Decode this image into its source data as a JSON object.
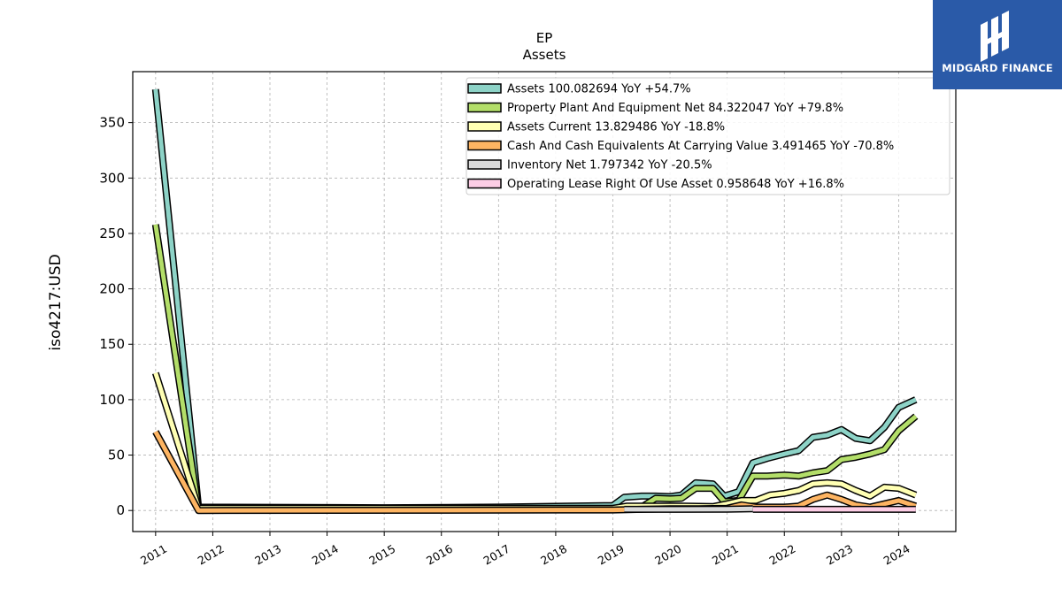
{
  "chart_data": {
    "type": "line",
    "title": "EP",
    "subtitle": "Assets",
    "xlabel": "",
    "ylabel": "iso4217:USD",
    "xlim": [
      2010.6,
      2025.0
    ],
    "ylim": [
      -19,
      396
    ],
    "yticks": [
      0,
      50,
      100,
      150,
      200,
      250,
      300,
      350
    ],
    "xticks": [
      2011,
      2012,
      2013,
      2014,
      2015,
      2016,
      2017,
      2018,
      2019,
      2020,
      2021,
      2022,
      2023,
      2024
    ],
    "xtick_labels": [
      "2011",
      "2012",
      "2013",
      "2014",
      "2015",
      "2016",
      "2017",
      "2018",
      "2019",
      "2020",
      "2021",
      "2022",
      "2023",
      "2024"
    ],
    "grid": true,
    "legend_position": "top-right",
    "series": [
      {
        "name": "Assets",
        "legend": "Assets  100.082694 YoY +54.7%",
        "color": "#8dd3c7",
        "points": [
          [
            2011.0,
            380
          ],
          [
            2011.75,
            3
          ],
          [
            2015.0,
            2.5
          ],
          [
            2017.0,
            3
          ],
          [
            2019.0,
            4.5
          ],
          [
            2019.2,
            12
          ],
          [
            2019.5,
            13
          ],
          [
            2019.75,
            13
          ],
          [
            2020.0,
            12.5
          ],
          [
            2020.2,
            14
          ],
          [
            2020.45,
            25
          ],
          [
            2020.75,
            24
          ],
          [
            2020.95,
            13
          ],
          [
            2021.2,
            17
          ],
          [
            2021.45,
            43
          ],
          [
            2021.7,
            47
          ],
          [
            2022.0,
            51
          ],
          [
            2022.25,
            54
          ],
          [
            2022.5,
            66
          ],
          [
            2022.75,
            68
          ],
          [
            2023.0,
            73
          ],
          [
            2023.25,
            65
          ],
          [
            2023.5,
            63
          ],
          [
            2023.75,
            75
          ],
          [
            2024.0,
            93
          ],
          [
            2024.3,
            100
          ]
        ]
      },
      {
        "name": "Property Plant And Equipment Net",
        "legend": "Property Plant And Equipment Net  84.322047 YoY +79.8%",
        "color": "#b3de69",
        "points": [
          [
            2011.0,
            258
          ],
          [
            2011.75,
            1
          ],
          [
            2019.0,
            1
          ],
          [
            2019.25,
            1
          ],
          [
            2019.5,
            3
          ],
          [
            2019.75,
            11
          ],
          [
            2020.0,
            10.5
          ],
          [
            2020.2,
            11
          ],
          [
            2020.45,
            20
          ],
          [
            2020.75,
            20
          ],
          [
            2020.95,
            8
          ],
          [
            2021.2,
            9
          ],
          [
            2021.45,
            31
          ],
          [
            2021.7,
            31
          ],
          [
            2022.0,
            32
          ],
          [
            2022.25,
            31
          ],
          [
            2022.5,
            34
          ],
          [
            2022.75,
            36
          ],
          [
            2023.0,
            46
          ],
          [
            2023.25,
            48
          ],
          [
            2023.5,
            51
          ],
          [
            2023.75,
            55
          ],
          [
            2024.0,
            72
          ],
          [
            2024.3,
            85
          ]
        ]
      },
      {
        "name": "Assets Current",
        "legend": "Assets Current  13.829486 YoY -18.8%",
        "color": "#ffffb3",
        "points": [
          [
            2011.0,
            124
          ],
          [
            2011.75,
            2
          ],
          [
            2019.0,
            2
          ],
          [
            2019.25,
            4
          ],
          [
            2019.75,
            4
          ],
          [
            2020.25,
            4
          ],
          [
            2020.75,
            3.5
          ],
          [
            2021.0,
            6
          ],
          [
            2021.25,
            9
          ],
          [
            2021.5,
            9
          ],
          [
            2021.75,
            14
          ],
          [
            2022.0,
            15.5
          ],
          [
            2022.25,
            18
          ],
          [
            2022.5,
            24
          ],
          [
            2022.75,
            25
          ],
          [
            2023.0,
            24
          ],
          [
            2023.25,
            18
          ],
          [
            2023.5,
            13
          ],
          [
            2023.75,
            21
          ],
          [
            2024.0,
            20
          ],
          [
            2024.3,
            14
          ]
        ]
      },
      {
        "name": "Cash And Cash Equivalents At Carrying Value",
        "legend": "Cash And Cash Equivalents At Carrying Value  3.491465 YoY -70.8%",
        "color": "#fdb462",
        "points": [
          [
            2011.0,
            71
          ],
          [
            2011.75,
            0
          ],
          [
            2019.0,
            0.5
          ],
          [
            2019.5,
            1
          ],
          [
            2020.0,
            1.5
          ],
          [
            2020.5,
            1.5
          ],
          [
            2021.0,
            2
          ],
          [
            2021.25,
            5
          ],
          [
            2021.5,
            3
          ],
          [
            2022.0,
            3
          ],
          [
            2022.25,
            4
          ],
          [
            2022.5,
            10
          ],
          [
            2022.75,
            14
          ],
          [
            2023.0,
            10
          ],
          [
            2023.25,
            5
          ],
          [
            2023.5,
            3
          ],
          [
            2023.75,
            6
          ],
          [
            2024.0,
            9
          ],
          [
            2024.3,
            4
          ]
        ]
      },
      {
        "name": "Inventory Net",
        "legend": "Inventory Net  1.797342 YoY -20.5%",
        "color": "#d9d9d9",
        "points": [
          [
            2019.2,
            1
          ],
          [
            2020.0,
            1
          ],
          [
            2021.0,
            1.2
          ],
          [
            2021.45,
            1.5
          ]
        ]
      },
      {
        "name": "Operating Lease Right Of Use Asset",
        "legend": "Operating Lease Right Of Use Asset  0.958648 YoY +16.8%",
        "color": "#fccde5",
        "points": [
          [
            2021.45,
            1
          ],
          [
            2022.0,
            1
          ],
          [
            2022.5,
            1
          ],
          [
            2023.0,
            1
          ],
          [
            2023.5,
            1
          ],
          [
            2024.0,
            1
          ],
          [
            2024.3,
            1
          ]
        ]
      }
    ]
  },
  "logo": {
    "text": "MIDGARD FINANCE",
    "color": "#2a5aa8"
  }
}
